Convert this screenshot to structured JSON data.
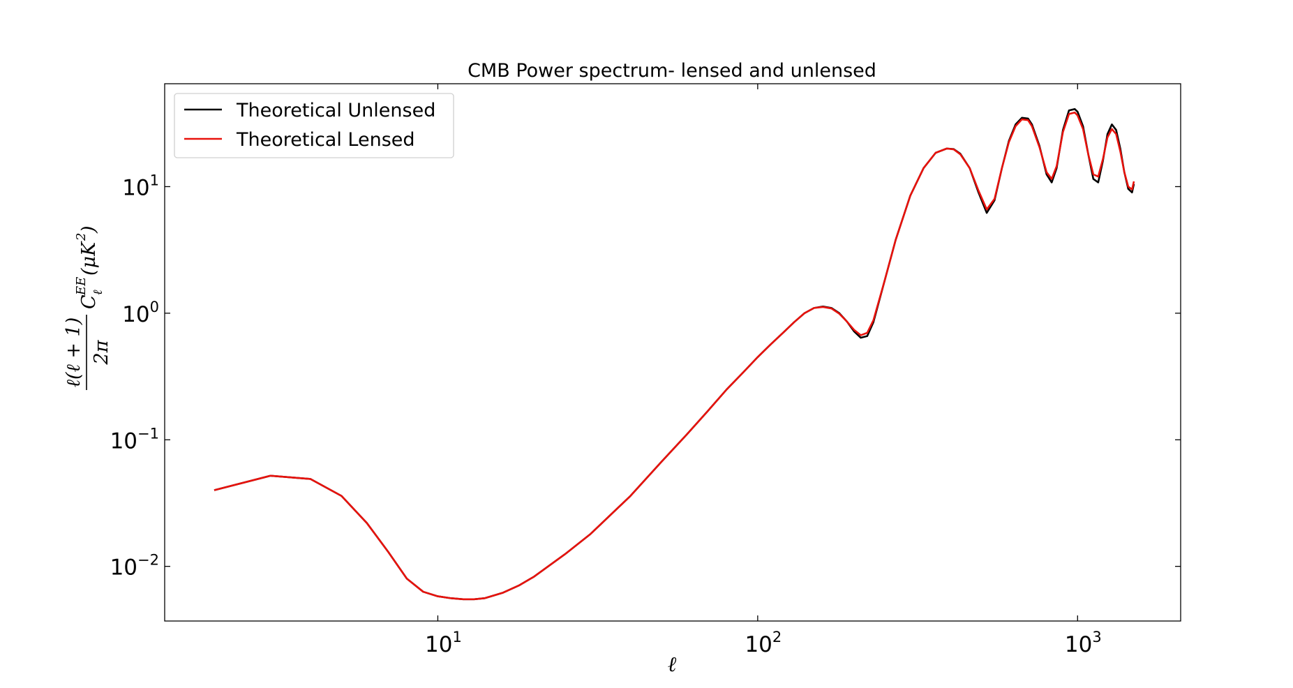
{
  "chart_data": {
    "type": "line",
    "title": "CMB Power spectrum- lensed and unlensed",
    "xlabel": "ℓ",
    "ylabel": "ℓ(ℓ+1)/2π C_ℓ^EE (μK²)",
    "xscale": "log",
    "yscale": "log",
    "xlim": [
      1.4,
      2100
    ],
    "ylim": [
      0.0037,
      65
    ],
    "grid": false,
    "legend_position": "top-left",
    "x_ticks": [
      {
        "base": "10",
        "exp": "1",
        "value": 10
      },
      {
        "base": "10",
        "exp": "2",
        "value": 100
      },
      {
        "base": "10",
        "exp": "3",
        "value": 1000
      }
    ],
    "y_ticks": [
      {
        "base": "10",
        "exp": "−2",
        "value": 0.01
      },
      {
        "base": "10",
        "exp": "−1",
        "value": 0.1
      },
      {
        "base": "10",
        "exp": "0",
        "value": 1
      },
      {
        "base": "10",
        "exp": "1",
        "value": 10
      }
    ],
    "series": [
      {
        "name": "Theoretical Unlensed",
        "color": "#000000",
        "x": [
          2,
          3,
          4,
          5,
          6,
          7,
          8,
          9,
          10,
          11,
          12,
          13,
          14,
          15,
          16,
          18,
          20,
          25,
          30,
          40,
          50,
          60,
          70,
          80,
          90,
          100,
          110,
          120,
          130,
          140,
          150,
          160,
          170,
          180,
          190,
          200,
          210,
          220,
          230,
          250,
          270,
          300,
          330,
          360,
          390,
          410,
          430,
          460,
          490,
          520,
          550,
          580,
          610,
          640,
          670,
          700,
          720,
          760,
          800,
          830,
          860,
          900,
          940,
          980,
          1000,
          1040,
          1080,
          1120,
          1160,
          1200,
          1240,
          1280,
          1320,
          1360,
          1400,
          1440,
          1480,
          1500
        ],
        "y": [
          0.04,
          0.052,
          0.049,
          0.036,
          0.022,
          0.013,
          0.008,
          0.0063,
          0.0058,
          0.0056,
          0.0055,
          0.0055,
          0.0056,
          0.0059,
          0.0062,
          0.0071,
          0.0083,
          0.0125,
          0.018,
          0.036,
          0.067,
          0.11,
          0.17,
          0.25,
          0.34,
          0.45,
          0.57,
          0.7,
          0.85,
          1.0,
          1.1,
          1.13,
          1.1,
          1.0,
          0.86,
          0.72,
          0.64,
          0.66,
          0.85,
          1.85,
          3.8,
          8.5,
          14.0,
          18.5,
          20.0,
          19.8,
          18.2,
          14.0,
          9.0,
          6.2,
          7.8,
          14.0,
          23.0,
          31.0,
          35.0,
          34.5,
          31.0,
          21.0,
          12.5,
          10.8,
          14.0,
          28.0,
          40.0,
          41.0,
          39.0,
          30.0,
          18.0,
          11.5,
          10.8,
          16.0,
          26.0,
          31.0,
          28.0,
          20.0,
          13.0,
          9.6,
          9.0,
          10.5
        ]
      },
      {
        "name": "Theoretical Lensed",
        "color": "#e8120c",
        "x": [
          2,
          3,
          4,
          5,
          6,
          7,
          8,
          9,
          10,
          11,
          12,
          13,
          14,
          15,
          16,
          18,
          20,
          25,
          30,
          40,
          50,
          60,
          70,
          80,
          90,
          100,
          110,
          120,
          130,
          140,
          150,
          160,
          170,
          180,
          190,
          200,
          210,
          220,
          230,
          250,
          270,
          300,
          330,
          360,
          390,
          410,
          430,
          460,
          490,
          520,
          550,
          580,
          610,
          640,
          670,
          700,
          720,
          760,
          800,
          830,
          860,
          900,
          940,
          980,
          1000,
          1040,
          1080,
          1120,
          1160,
          1200,
          1240,
          1280,
          1320,
          1360,
          1400,
          1440,
          1480,
          1500
        ],
        "y": [
          0.04,
          0.052,
          0.049,
          0.036,
          0.022,
          0.013,
          0.008,
          0.0063,
          0.0058,
          0.0056,
          0.0055,
          0.0055,
          0.0056,
          0.0059,
          0.0062,
          0.0071,
          0.0083,
          0.0125,
          0.018,
          0.036,
          0.067,
          0.11,
          0.17,
          0.25,
          0.34,
          0.45,
          0.57,
          0.7,
          0.85,
          1.0,
          1.1,
          1.12,
          1.09,
          0.99,
          0.86,
          0.74,
          0.67,
          0.7,
          0.88,
          1.85,
          3.8,
          8.5,
          14.0,
          18.5,
          20.0,
          19.7,
          18.0,
          14.0,
          9.3,
          6.6,
          8.0,
          14.0,
          22.5,
          30.0,
          34.0,
          33.5,
          30.0,
          20.5,
          13.0,
          11.5,
          14.5,
          27.0,
          37.5,
          38.5,
          36.5,
          28.5,
          18.0,
          12.5,
          12.0,
          16.5,
          24.5,
          28.5,
          26.0,
          19.0,
          13.0,
          10.0,
          9.5,
          11.0
        ]
      }
    ]
  }
}
